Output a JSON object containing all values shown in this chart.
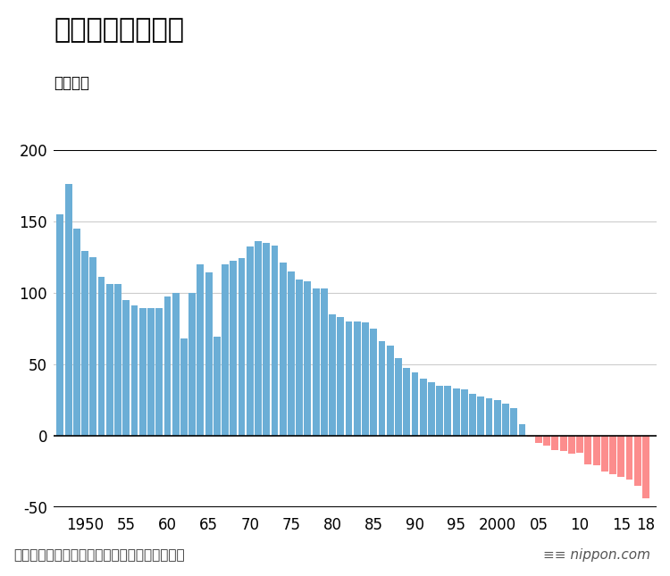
{
  "title": "人口の自然増減数",
  "ylabel": "（万人）",
  "source": "厚生労働省の人口動態統計をもとに編集部作成",
  "years": [
    1947,
    1948,
    1949,
    1950,
    1951,
    1952,
    1953,
    1954,
    1955,
    1956,
    1957,
    1958,
    1959,
    1960,
    1961,
    1962,
    1963,
    1964,
    1965,
    1966,
    1967,
    1968,
    1969,
    1970,
    1971,
    1972,
    1973,
    1974,
    1975,
    1976,
    1977,
    1978,
    1979,
    1980,
    1981,
    1982,
    1983,
    1984,
    1985,
    1986,
    1987,
    1988,
    1989,
    1990,
    1991,
    1992,
    1993,
    1994,
    1995,
    1996,
    1997,
    1998,
    1999,
    2000,
    2001,
    2002,
    2003,
    2004,
    2005,
    2006,
    2007,
    2008,
    2009,
    2010,
    2011,
    2012,
    2013,
    2014,
    2015,
    2016,
    2017,
    2018
  ],
  "values": [
    155,
    176,
    145,
    129,
    125,
    111,
    106,
    106,
    95,
    91,
    89,
    89,
    89,
    97,
    100,
    68,
    100,
    120,
    114,
    69,
    120,
    122,
    124,
    132,
    136,
    135,
    133,
    121,
    115,
    109,
    108,
    103,
    103,
    85,
    83,
    80,
    80,
    79,
    75,
    66,
    63,
    54,
    47,
    44,
    40,
    37,
    35,
    35,
    33,
    32,
    29,
    27,
    26,
    25,
    22,
    19,
    8,
    -1,
    -5,
    -7,
    -10,
    -11,
    -13,
    -12,
    -20,
    -21,
    -25,
    -27,
    -29,
    -31,
    -35,
    -44
  ],
  "positive_color": "#6baed6",
  "negative_color": "#fc8d8d",
  "background_color": "#ffffff",
  "ylim": [
    -50,
    200
  ],
  "yticks": [
    -50,
    0,
    50,
    100,
    150,
    200
  ],
  "xtick_labels": [
    "1950",
    "55",
    "60",
    "65",
    "70",
    "75",
    "80",
    "85",
    "90",
    "95",
    "2000",
    "05",
    "10",
    "15",
    "18"
  ],
  "xtick_positions": [
    1950,
    1955,
    1960,
    1965,
    1970,
    1975,
    1980,
    1985,
    1990,
    1995,
    2000,
    2005,
    2010,
    2015,
    2018
  ],
  "title_fontsize": 22,
  "ylabel_fontsize": 12,
  "tick_fontsize": 12,
  "source_fontsize": 11,
  "nippon_fontsize": 11
}
